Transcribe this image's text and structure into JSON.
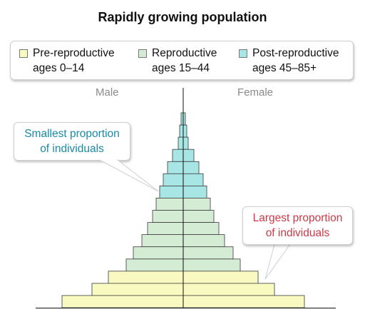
{
  "title": "Rapidly growing population",
  "legend": {
    "items": [
      {
        "line1": "Pre-reproductive",
        "line2": "ages 0–14",
        "color": "#f9f9c2"
      },
      {
        "line1": "Reproductive",
        "line2": "ages 15–44",
        "color": "#d4ecd4"
      },
      {
        "line1": "Post-reproductive",
        "line2": "ages 45–85+",
        "color": "#a8e6e6"
      }
    ]
  },
  "labels": {
    "male": "Male",
    "female": "Female"
  },
  "callouts": {
    "smallest": {
      "line1": "Smallest proportion",
      "line2": "of individuals"
    },
    "largest": {
      "line1": "Largest proportion",
      "line2": "of individuals"
    }
  },
  "pyramid": {
    "bars": [
      {
        "male": 3,
        "female": 3,
        "group": 2
      },
      {
        "male": 5,
        "female": 5,
        "group": 2
      },
      {
        "male": 7,
        "female": 7,
        "group": 2
      },
      {
        "male": 15,
        "female": 15,
        "group": 2
      },
      {
        "male": 22,
        "female": 22,
        "group": 2
      },
      {
        "male": 28,
        "female": 28,
        "group": 2
      },
      {
        "male": 33,
        "female": 33,
        "group": 2
      },
      {
        "male": 38,
        "female": 38,
        "group": 1
      },
      {
        "male": 43,
        "female": 43,
        "group": 1
      },
      {
        "male": 50,
        "female": 50,
        "group": 1
      },
      {
        "male": 58,
        "female": 58,
        "group": 1
      },
      {
        "male": 70,
        "female": 70,
        "group": 1
      },
      {
        "male": 80,
        "female": 80,
        "group": 1
      },
      {
        "male": 105,
        "female": 105,
        "group": 0
      },
      {
        "male": 128,
        "female": 128,
        "group": 0
      },
      {
        "male": 170,
        "female": 170,
        "group": 0
      }
    ]
  }
}
